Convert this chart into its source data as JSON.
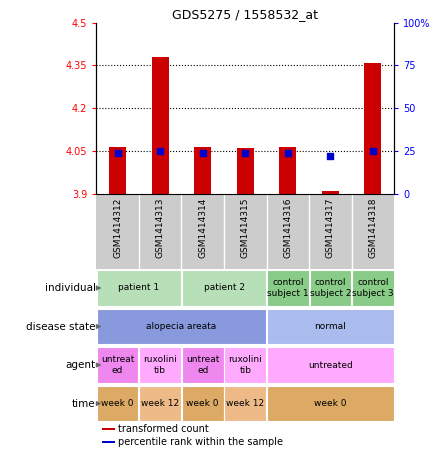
{
  "title": "GDS5275 / 1558532_at",
  "samples": [
    "GSM1414312",
    "GSM1414313",
    "GSM1414314",
    "GSM1414315",
    "GSM1414316",
    "GSM1414317",
    "GSM1414318"
  ],
  "red_values": [
    4.063,
    4.38,
    4.063,
    4.06,
    4.063,
    3.91,
    4.36
  ],
  "blue_values": [
    24,
    25,
    24,
    24,
    24,
    22,
    25
  ],
  "ylim_left": [
    3.9,
    4.5
  ],
  "ylim_right": [
    0,
    100
  ],
  "yticks_left": [
    3.9,
    4.05,
    4.2,
    4.35,
    4.5
  ],
  "yticks_right": [
    0,
    25,
    50,
    75,
    100
  ],
  "ytick_labels_left": [
    "3.9",
    "4.05",
    "4.2",
    "4.35",
    "4.5"
  ],
  "ytick_labels_right": [
    "0",
    "25",
    "50",
    "75",
    "100%"
  ],
  "dotted_lines": [
    4.05,
    4.2,
    4.35
  ],
  "bar_color": "#cc0000",
  "dot_color": "#0000cc",
  "bar_bottom": 3.9,
  "annotation_rows": [
    {
      "label": "individual",
      "cells": [
        {
          "text": "patient 1",
          "span": [
            0,
            1
          ],
          "color": "#b8e0b8"
        },
        {
          "text": "patient 2",
          "span": [
            2,
            3
          ],
          "color": "#b8e0b8"
        },
        {
          "text": "control\nsubject 1",
          "span": [
            4,
            4
          ],
          "color": "#88cc88"
        },
        {
          "text": "control\nsubject 2",
          "span": [
            5,
            5
          ],
          "color": "#88cc88"
        },
        {
          "text": "control\nsubject 3",
          "span": [
            6,
            6
          ],
          "color": "#88cc88"
        }
      ]
    },
    {
      "label": "disease state",
      "cells": [
        {
          "text": "alopecia areata",
          "span": [
            0,
            3
          ],
          "color": "#8899dd"
        },
        {
          "text": "normal",
          "span": [
            4,
            6
          ],
          "color": "#aabbee"
        }
      ]
    },
    {
      "label": "agent",
      "cells": [
        {
          "text": "untreat\ned",
          "span": [
            0,
            0
          ],
          "color": "#ee88ee"
        },
        {
          "text": "ruxolini\ntib",
          "span": [
            1,
            1
          ],
          "color": "#ffaaff"
        },
        {
          "text": "untreat\ned",
          "span": [
            2,
            2
          ],
          "color": "#ee88ee"
        },
        {
          "text": "ruxolini\ntib",
          "span": [
            3,
            3
          ],
          "color": "#ffaaff"
        },
        {
          "text": "untreated",
          "span": [
            4,
            6
          ],
          "color": "#ffaaff"
        }
      ]
    },
    {
      "label": "time",
      "cells": [
        {
          "text": "week 0",
          "span": [
            0,
            0
          ],
          "color": "#ddaa66"
        },
        {
          "text": "week 12",
          "span": [
            1,
            1
          ],
          "color": "#eebb88"
        },
        {
          "text": "week 0",
          "span": [
            2,
            2
          ],
          "color": "#ddaa66"
        },
        {
          "text": "week 12",
          "span": [
            3,
            3
          ],
          "color": "#eebb88"
        },
        {
          "text": "week 0",
          "span": [
            4,
            6
          ],
          "color": "#ddaa66"
        }
      ]
    }
  ],
  "legend": [
    {
      "color": "#cc0000",
      "label": "transformed count"
    },
    {
      "color": "#0000cc",
      "label": "percentile rank within the sample"
    }
  ],
  "gsm_bg_color": "#cccccc",
  "plot_bg_color": "#ffffff"
}
